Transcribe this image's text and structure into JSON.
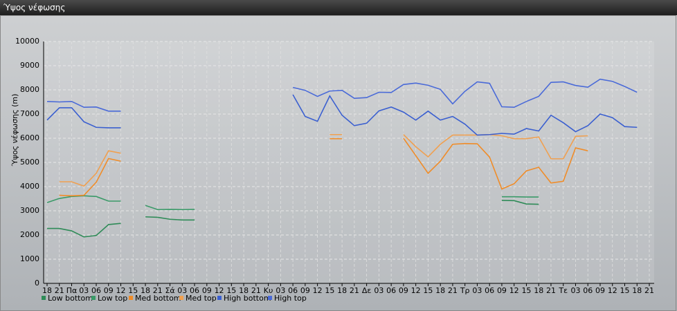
{
  "chart_data": {
    "type": "line",
    "title": "Ύψος νέφωσης",
    "y_label": "Ύψος νέφωσης (m)",
    "categories": [
      "18",
      "21",
      "Πα",
      "03",
      "06",
      "09",
      "12",
      "15",
      "18",
      "21",
      "Σά",
      "03",
      "06",
      "09",
      "12",
      "15",
      "18",
      "21",
      "Κυ",
      "03",
      "06",
      "09",
      "12",
      "15",
      "18",
      "21",
      "Δε",
      "03",
      "06",
      "09",
      "12",
      "15",
      "18",
      "21",
      "Τρ",
      "03",
      "06",
      "09",
      "12",
      "15",
      "18",
      "21",
      "Τε",
      "03",
      "06",
      "09",
      "12",
      "15",
      "18",
      "21"
    ],
    "ylim": [
      0,
      10000
    ],
    "yticks": [
      0,
      1000,
      2000,
      3000,
      4000,
      5000,
      6000,
      7000,
      8000,
      9000,
      10000
    ],
    "grid": true,
    "series": [
      {
        "name": "Low bottom",
        "color": "#2e8b57",
        "values": [
          2270,
          2270,
          2170,
          1920,
          1980,
          2430,
          2480,
          null,
          2750,
          2730,
          2650,
          2620,
          2620,
          null,
          null,
          null,
          null,
          null,
          null,
          null,
          null,
          null,
          null,
          null,
          null,
          null,
          null,
          null,
          null,
          null,
          null,
          null,
          null,
          null,
          null,
          null,
          null,
          3430,
          3420,
          3280,
          3270,
          null,
          null,
          null,
          null,
          null,
          null,
          null,
          null,
          null
        ]
      },
      {
        "name": "Low top",
        "color": "#3a9a68",
        "values": [
          3340,
          3510,
          3590,
          3620,
          3590,
          3400,
          3400,
          null,
          3220,
          3050,
          3060,
          3050,
          3060,
          null,
          null,
          null,
          null,
          null,
          null,
          null,
          null,
          null,
          null,
          null,
          null,
          null,
          null,
          null,
          null,
          null,
          null,
          null,
          null,
          null,
          null,
          null,
          null,
          3580,
          3580,
          3570,
          3570,
          null,
          null,
          null,
          null,
          null,
          null,
          null,
          null,
          null
        ]
      },
      {
        "name": "Med bottom",
        "color": "#f08c28",
        "values": [
          null,
          3640,
          3620,
          3640,
          4180,
          5160,
          5050,
          null,
          null,
          null,
          null,
          null,
          null,
          null,
          null,
          null,
          null,
          null,
          null,
          null,
          null,
          null,
          null,
          5980,
          5980,
          null,
          null,
          null,
          null,
          6000,
          5280,
          4550,
          5050,
          5750,
          5780,
          5770,
          5220,
          3900,
          4120,
          4650,
          4800,
          4150,
          4220,
          5600,
          5480,
          null,
          null,
          null,
          null,
          null
        ]
      },
      {
        "name": "Med top",
        "color": "#f0a050",
        "values": [
          null,
          4200,
          4200,
          4020,
          4550,
          5480,
          5380,
          null,
          null,
          null,
          null,
          null,
          null,
          null,
          null,
          null,
          null,
          null,
          null,
          null,
          null,
          null,
          null,
          6150,
          6150,
          null,
          null,
          null,
          null,
          6150,
          5650,
          5230,
          5750,
          6130,
          6130,
          6130,
          6150,
          6100,
          5980,
          5980,
          6050,
          5150,
          5150,
          6080,
          6100,
          null,
          null,
          null,
          null,
          null
        ]
      },
      {
        "name": "High bottom",
        "color": "#3a5fd0",
        "values": [
          6750,
          7260,
          7260,
          6680,
          6450,
          6430,
          6430,
          null,
          null,
          null,
          null,
          null,
          null,
          null,
          null,
          null,
          null,
          null,
          null,
          null,
          7800,
          6900,
          6700,
          7750,
          6950,
          6520,
          6620,
          7130,
          7290,
          7080,
          6750,
          7120,
          6750,
          6900,
          6580,
          6130,
          6150,
          6200,
          6170,
          6400,
          6300,
          6950,
          6640,
          6270,
          6520,
          7000,
          6850,
          6480,
          6450,
          null
        ]
      },
      {
        "name": "High top",
        "color": "#4a6ad8",
        "values": [
          7520,
          7500,
          7520,
          7280,
          7290,
          7120,
          7120,
          null,
          null,
          null,
          null,
          null,
          null,
          null,
          null,
          null,
          null,
          null,
          null,
          null,
          8100,
          7980,
          7730,
          7950,
          7980,
          7650,
          7680,
          7900,
          7890,
          8220,
          8280,
          8190,
          8020,
          7420,
          7940,
          8330,
          8270,
          7300,
          7280,
          7520,
          7730,
          8310,
          8330,
          8180,
          8110,
          8440,
          8350,
          8140,
          7900,
          null
        ]
      }
    ]
  }
}
